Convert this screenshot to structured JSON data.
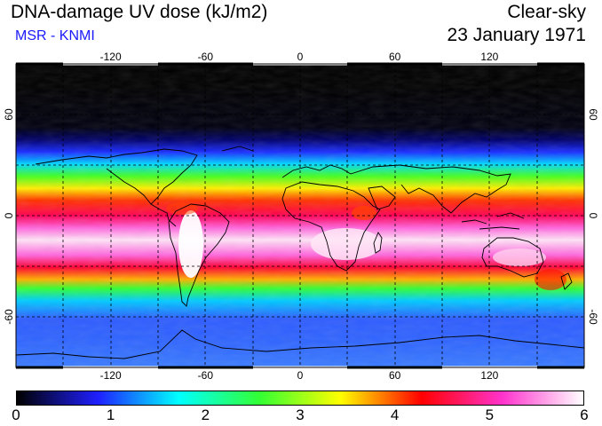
{
  "header": {
    "title": "DNA-damage UV dose (kJ/m2)",
    "source": "MSR - KNMI",
    "condition": "Clear-sky",
    "date": "23 January 1971"
  },
  "map": {
    "longitude_ticks": [
      "-120",
      "-60",
      "0",
      "60",
      "120"
    ],
    "latitude_ticks": [
      "60",
      "0",
      "-60"
    ],
    "longitude_values": [
      -120,
      -60,
      0,
      60,
      120
    ],
    "latitude_values": [
      60,
      0,
      -60
    ],
    "lon_range": [
      -180,
      180
    ],
    "lat_range": [
      -90,
      90
    ],
    "grid": true,
    "grid_style": "dashed"
  },
  "colorbar": {
    "min": 0,
    "max": 6,
    "labels": [
      "0",
      "1",
      "2",
      "3",
      "4",
      "5",
      "6"
    ],
    "colors": [
      "#000000",
      "#1f1fff",
      "#00ffff",
      "#33ff33",
      "#ffff00",
      "#ff0000",
      "#ff33cc",
      "#ffffff"
    ]
  },
  "legend_colors": {
    "ocean_high": "#ff00aa",
    "land_peak": "#ffffff"
  }
}
